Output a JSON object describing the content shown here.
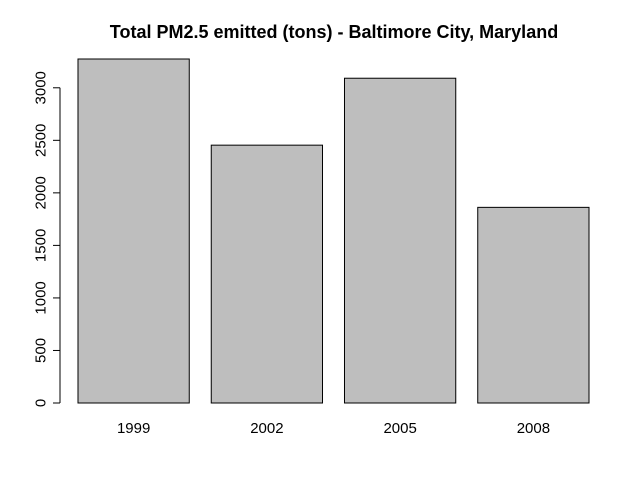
{
  "chart_data": {
    "type": "bar",
    "title": "Total PM2.5 emitted (tons) - Baltimore City, Maryland",
    "xlabel": "",
    "ylabel": "",
    "categories": [
      "1999",
      "2002",
      "2005",
      "2008"
    ],
    "values": [
      3274,
      2454,
      3091,
      1862
    ],
    "ylim": [
      0,
      3274
    ],
    "yticks": [
      0,
      500,
      1000,
      1500,
      2000,
      2500,
      3000
    ],
    "bar_color": "#bebebe",
    "grid": false,
    "legend": "none"
  }
}
